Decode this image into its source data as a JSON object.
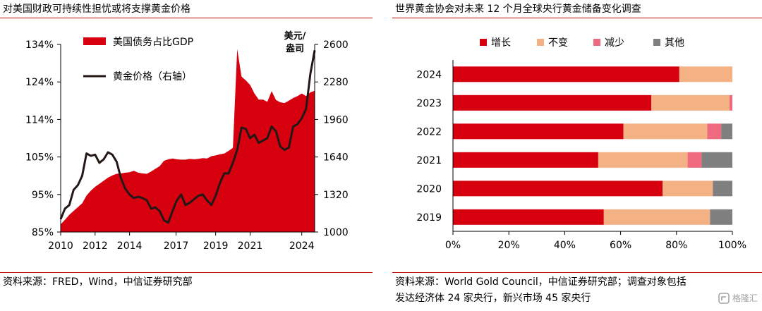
{
  "left": {
    "title": "对美国财政可持续性担忧或将支撑黄金价格",
    "source": "资料来源：FRED，Wind，中信证券研究部",
    "chart_data": {
      "type": "area",
      "legend": [
        "美国债务占比GDP",
        "黄金价格（右轴）"
      ],
      "legend_position": "top-left",
      "y_left_ticks": [
        "134%",
        "124%",
        "114%",
        "105%",
        "95%",
        "85%"
      ],
      "y_right_ticks": [
        "2600",
        "2280",
        "1960",
        "1640",
        "1320",
        "1000"
      ],
      "right_unit": [
        "美元/",
        "盎司"
      ],
      "x_ticks": [
        "2010",
        "2012",
        "2014",
        "2017",
        "2019",
        "2021",
        "2024"
      ],
      "ylim_left": [
        85,
        134
      ],
      "ylim_right": [
        1000,
        2600
      ],
      "series": [
        {
          "name": "美国债务占比GDP",
          "type": "area",
          "color": "#d7000f",
          "axis": "left",
          "x": [
            2010.0,
            2010.25,
            2010.5,
            2010.75,
            2011.0,
            2011.25,
            2011.5,
            2011.75,
            2012.0,
            2012.25,
            2012.5,
            2012.75,
            2013.0,
            2013.25,
            2013.5,
            2013.75,
            2014.0,
            2014.25,
            2014.5,
            2014.75,
            2015.0,
            2015.25,
            2015.5,
            2015.75,
            2016.0,
            2016.25,
            2016.5,
            2016.75,
            2017.0,
            2017.25,
            2017.5,
            2017.75,
            2018.0,
            2018.25,
            2018.5,
            2018.75,
            2019.0,
            2019.25,
            2019.5,
            2019.75,
            2020.0,
            2020.25,
            2020.5,
            2020.75,
            2021.0,
            2021.25,
            2021.5,
            2021.75,
            2022.0,
            2022.25,
            2022.5,
            2022.75,
            2023.0,
            2023.25,
            2023.5,
            2023.75,
            2024.0,
            2024.25,
            2024.5,
            2024.75
          ],
          "values": [
            87.0,
            88.2,
            89.5,
            90.5,
            91.5,
            92.5,
            94.5,
            95.8,
            96.8,
            97.6,
            98.4,
            99.2,
            99.8,
            100.2,
            100.3,
            100.5,
            100.6,
            101.0,
            100.5,
            100.3,
            100.2,
            100.8,
            101.5,
            102.2,
            103.6,
            104.0,
            104.2,
            104.0,
            103.9,
            103.9,
            104.1,
            104.0,
            104.1,
            104.3,
            104.2,
            104.8,
            105.0,
            105.3,
            105.5,
            106.2,
            107.0,
            132.8,
            125.6,
            124.6,
            123.4,
            121.2,
            119.6,
            119.6,
            119.0,
            121.8,
            119.5,
            118.9,
            118.7,
            119.3,
            120.0,
            120.5,
            121.2,
            120.5,
            121.5,
            121.9
          ]
        },
        {
          "name": "黄金价格（右轴）",
          "type": "line",
          "color": "#231815",
          "axis": "right",
          "x": [
            2010.0,
            2010.25,
            2010.5,
            2010.75,
            2011.0,
            2011.25,
            2011.5,
            2011.75,
            2012.0,
            2012.25,
            2012.5,
            2012.75,
            2013.0,
            2013.25,
            2013.5,
            2013.75,
            2014.0,
            2014.25,
            2014.5,
            2014.75,
            2015.0,
            2015.25,
            2015.5,
            2015.75,
            2016.0,
            2016.25,
            2016.5,
            2016.75,
            2017.0,
            2017.25,
            2017.5,
            2017.75,
            2018.0,
            2018.25,
            2018.5,
            2018.75,
            2019.0,
            2019.25,
            2019.5,
            2019.75,
            2020.0,
            2020.25,
            2020.5,
            2020.75,
            2021.0,
            2021.25,
            2021.5,
            2021.75,
            2022.0,
            2022.25,
            2022.5,
            2022.75,
            2023.0,
            2023.25,
            2023.5,
            2023.75,
            2024.0,
            2024.25,
            2024.5,
            2024.75
          ],
          "values": [
            1110,
            1200,
            1230,
            1360,
            1400,
            1480,
            1670,
            1650,
            1660,
            1590,
            1620,
            1680,
            1660,
            1600,
            1460,
            1370,
            1320,
            1290,
            1300,
            1290,
            1270,
            1200,
            1210,
            1180,
            1100,
            1080,
            1180,
            1270,
            1320,
            1230,
            1250,
            1280,
            1310,
            1320,
            1270,
            1230,
            1310,
            1420,
            1500,
            1500,
            1590,
            1700,
            1890,
            1880,
            1800,
            1830,
            1760,
            1780,
            1800,
            1900,
            1860,
            1730,
            1700,
            1720,
            1900,
            1920,
            1970,
            2050,
            2350,
            2550
          ]
        }
      ]
    }
  },
  "right": {
    "title": "世界黄金协会对未来 12 个月全球央行黄金储备变化调查",
    "source_lines": [
      "资料来源：World Gold Council，中信证券研究部；调查对象包括",
      "发达经济体 24 家央行，新兴市场 45 家央行"
    ],
    "chart_data": {
      "type": "bar",
      "orientation": "horizontal",
      "stacked": true,
      "legend_position": "top",
      "categories": [
        "2024",
        "2023",
        "2022",
        "2021",
        "2020",
        "2019"
      ],
      "x_ticks": [
        "0%",
        "20%",
        "40%",
        "60%",
        "80%",
        "100%"
      ],
      "xlim": [
        0,
        100
      ],
      "series": [
        {
          "name": "增长",
          "color": "#d7000f",
          "values": [
            81,
            71,
            61,
            52,
            75,
            54
          ]
        },
        {
          "name": "不变",
          "color": "#f4b183",
          "values": [
            19,
            28,
            30,
            32,
            18,
            38
          ]
        },
        {
          "name": "减少",
          "color": "#f06a7f",
          "values": [
            0,
            1,
            5,
            5,
            0,
            0
          ]
        },
        {
          "name": "其他",
          "color": "#7f7f7f",
          "values": [
            0,
            0,
            4,
            11,
            7,
            8
          ]
        }
      ]
    }
  },
  "watermark": {
    "text": "格隆汇"
  }
}
